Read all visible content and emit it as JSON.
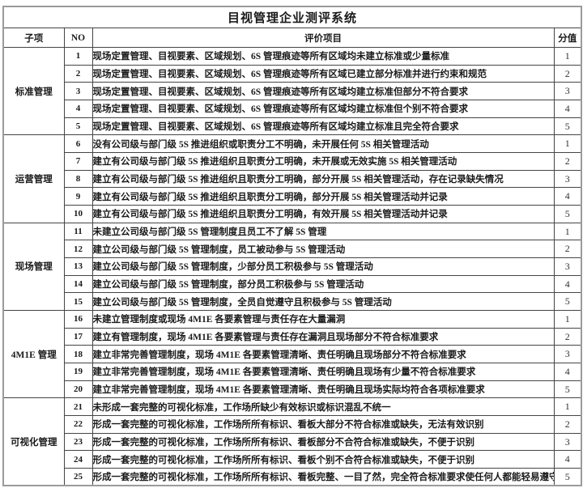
{
  "title": "目视管理企业测评系统",
  "columns": {
    "sub_item": "子项",
    "no": "NO",
    "item": "评价项目",
    "score": "分值"
  },
  "colors": {
    "background": "#ffffff",
    "text": "#1a1a1a",
    "border_inner": "#454545",
    "border_outer": "#9b9b9b"
  },
  "groups": [
    {
      "name": "标准管理",
      "rows": [
        {
          "no": "1",
          "item": "现场定置管理、目视要素、区域规划、6S 管理痕迹等所有区域均未建立标准或少量标准",
          "score": "1"
        },
        {
          "no": "2",
          "item": "现场定置管理、目视要素、区域规划、6S 管理痕迹等所有区域已建立部分标准并进行约束和规范",
          "score": "2"
        },
        {
          "no": "3",
          "item": "现场定置管理、目视要素、区域规划、6S 管理痕迹等所有区域均建立标准但部分不符合要求",
          "score": "3"
        },
        {
          "no": "4",
          "item": "现场定置管理、目视要素、区域规划、6S 管理痕迹等所有区域均建立标准但个别不符合要求",
          "score": "4"
        },
        {
          "no": "5",
          "item": "现场定置管理、目视要素、区域规划、6S 管理痕迹等所有区域均建立标准且完全符合要求",
          "score": "5"
        }
      ]
    },
    {
      "name": "运营管理",
      "rows": [
        {
          "no": "6",
          "item": "没有公司级与部门级 5S 推进组织或职责分工不明确，未开展任何 5S 相关管理活动",
          "score": "1"
        },
        {
          "no": "7",
          "item": "建立有公司级与部门级 5S 推进组织且职责分工明确，未开展或无效实施 5S 相关管理活动",
          "score": "2"
        },
        {
          "no": "8",
          "item": "建立有公司级与部门级 5S 推进组织且职责分工明确，部分开展 5S 相关管理活动，存在记录缺失情况",
          "score": "3"
        },
        {
          "no": "9",
          "item": "建立有公司级与部门级 5S 推进组织且职责分工明确，部分开展 5S 相关管理活动并记录",
          "score": "4"
        },
        {
          "no": "10",
          "item": "建立有公司级与部门级 5S 推进组织且职责分工明确，有效开展 5S 相关管理活动并记录",
          "score": "5"
        }
      ]
    },
    {
      "name": "现场管理",
      "rows": [
        {
          "no": "11",
          "item": "未建立公司级与部门级 5S 管理制度且员工不了解 5S 管理",
          "score": "1"
        },
        {
          "no": "12",
          "item": "建立公司级与部门级 5S 管理制度，员工被动参与 5S 管理活动",
          "score": "2"
        },
        {
          "no": "13",
          "item": "建立公司级与部门级 5S 管理制度，少部分员工积极参与 5S 管理活动",
          "score": "3"
        },
        {
          "no": "14",
          "item": "建立公司级与部门级 5S 管理制度，部分员工积极参与 5S 管理活动",
          "score": "4"
        },
        {
          "no": "15",
          "item": "建立公司级与部门级 5S 管理制度，全员自觉遵守且积极参与 5S 管理活动",
          "score": "5"
        }
      ]
    },
    {
      "name": "4M1E 管理",
      "rows": [
        {
          "no": "16",
          "item": "未建立管理制度或现场 4M1E 各要素管理与责任存在大量漏洞",
          "score": "1"
        },
        {
          "no": "17",
          "item": "建立有管理制度，现场 4M1E 各要素管理与责任存在漏洞且现场部分不符合标准要求",
          "score": "2"
        },
        {
          "no": "18",
          "item": "建立非常完善管理制度，现场 4M1E 各要素管理清晰、责任明确且现场部分不符合标准要求",
          "score": "3"
        },
        {
          "no": "19",
          "item": "建立非常完善管理制度，现场 4M1E 各要素管理清晰、责任明确且现场有少量不符合标准要求",
          "score": "4"
        },
        {
          "no": "20",
          "item": "建立非常完善管理制度，现场 4M1E 各要素管理清晰、责任明确且现场实际均符合各项标准要求",
          "score": "5"
        }
      ]
    },
    {
      "name": "可视化管理",
      "rows": [
        {
          "no": "21",
          "item": "未形成一套完整的可视化标准，工作场所缺少有效标识或标识混乱不统一",
          "score": "1"
        },
        {
          "no": "22",
          "item": "形成一套完整的可视化标准，工作场所所有标识、看板大部分不符合标准或缺失，无法有效识别",
          "score": "2"
        },
        {
          "no": "23",
          "item": "形成一套完整的可视化标准，工作场所所有标识、看板部分不合符合标准或缺失，不便于识别",
          "score": "3"
        },
        {
          "no": "24",
          "item": "形成一套完整的可视化标准，工作场所所有标识、看板个别不合符合标准或缺失，不便于识别",
          "score": "4"
        },
        {
          "no": "25",
          "item": "形成一套完整的可视化标准，工作场所所有标识、看板完整、一目了然，完全符合标准要求使任何人都能轻易遵守",
          "score": "5"
        }
      ]
    }
  ]
}
